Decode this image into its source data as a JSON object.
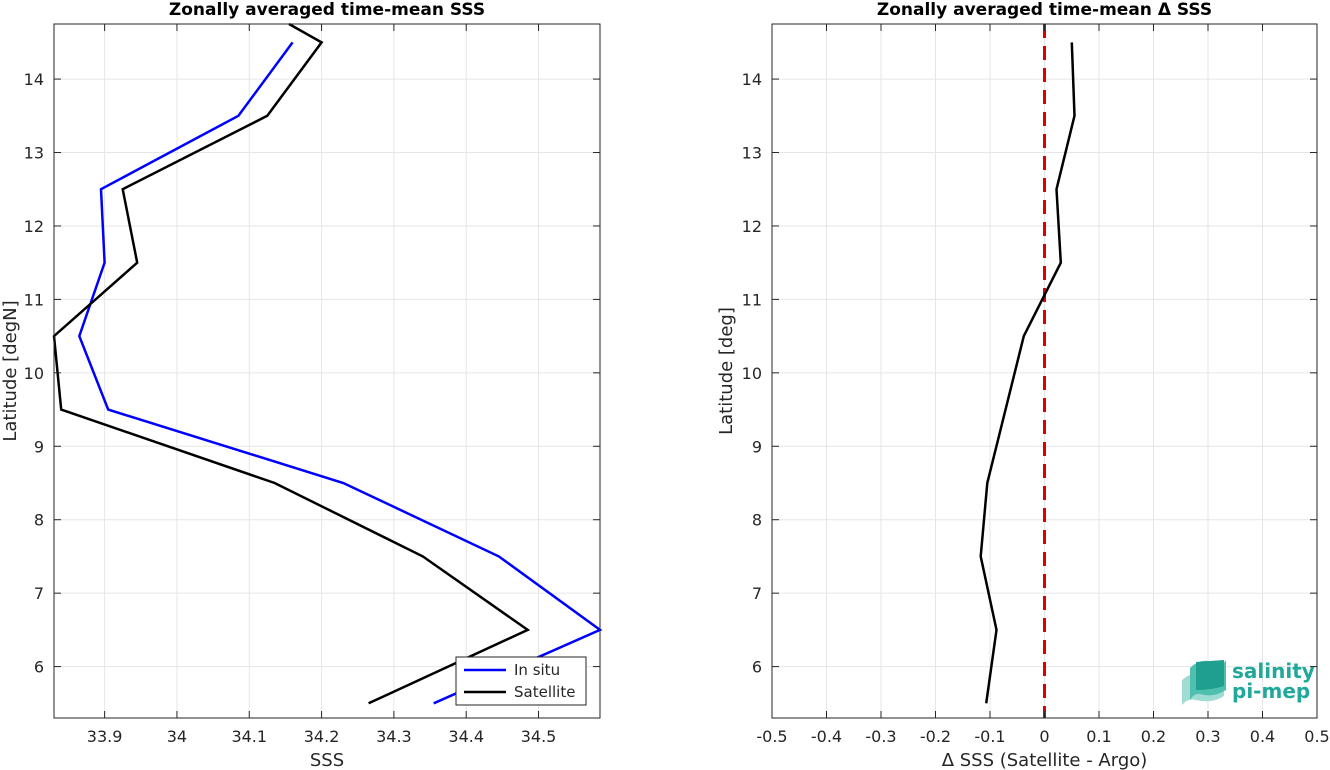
{
  "chart_data": [
    {
      "type": "line",
      "title": "Zonally averaged time-mean SSS",
      "xlabel": "SSS",
      "ylabel": "Latitude [degN]",
      "xlim": [
        33.83,
        34.585
      ],
      "ylim": [
        5.3,
        14.75
      ],
      "xticks": [
        33.9,
        34,
        34.1,
        34.2,
        34.3,
        34.4,
        34.5
      ],
      "xtick_labels": [
        "33.9",
        "34",
        "34.1",
        "34.2",
        "34.3",
        "34.4",
        "34.5"
      ],
      "yticks": [
        6,
        7,
        8,
        9,
        10,
        11,
        12,
        13,
        14
      ],
      "ytick_labels": [
        "6",
        "7",
        "8",
        "9",
        "10",
        "11",
        "12",
        "13",
        "14"
      ],
      "grid": true,
      "legend_position": "bottom-right",
      "series": [
        {
          "name": "In situ",
          "color": "#0000ff",
          "x": [
            34.355,
            34.585,
            34.445,
            34.23,
            33.905,
            33.865,
            33.9,
            33.895,
            34.085,
            34.16
          ],
          "y": [
            5.5,
            6.5,
            7.5,
            8.5,
            9.5,
            10.5,
            11.5,
            12.5,
            13.5,
            14.5
          ]
        },
        {
          "name": "Satellite",
          "color": "#000000",
          "x": [
            34.265,
            34.485,
            34.34,
            34.135,
            33.84,
            33.83,
            33.945,
            33.925,
            34.125,
            34.2,
            34.155
          ],
          "y": [
            5.5,
            6.5,
            7.5,
            8.5,
            9.5,
            10.5,
            11.5,
            12.5,
            13.5,
            14.5,
            14.75
          ]
        }
      ]
    },
    {
      "type": "line",
      "title": "Zonally averaged time-mean Δ SSS",
      "xlabel": "Δ SSS (Satellite - Argo)",
      "ylabel": "Latitude [deg]",
      "xlim": [
        -0.5,
        0.5
      ],
      "ylim": [
        5.3,
        14.75
      ],
      "xticks": [
        -0.5,
        -0.4,
        -0.3,
        -0.2,
        -0.1,
        0,
        0.1,
        0.2,
        0.3,
        0.4,
        0.5
      ],
      "xtick_labels": [
        "-0.5",
        "-0.4",
        "-0.3",
        "-0.2",
        "-0.1",
        "0",
        "0.1",
        "0.2",
        "0.3",
        "0.4",
        "0.5"
      ],
      "yticks": [
        6,
        7,
        8,
        9,
        10,
        11,
        12,
        13,
        14
      ],
      "ytick_labels": [
        "6",
        "7",
        "8",
        "9",
        "10",
        "11",
        "12",
        "13",
        "14"
      ],
      "grid": true,
      "reference_line": {
        "x": 0,
        "color": "#e00000",
        "style": "dashed"
      },
      "series": [
        {
          "color": "#000000",
          "x": [
            -0.107,
            -0.088,
            -0.117,
            -0.105,
            -0.038,
            0.03,
            0.022,
            0.055,
            0.05
          ],
          "y": [
            5.5,
            6.5,
            7.5,
            8.5,
            10.5,
            11.5,
            12.5,
            13.5,
            14.5
          ]
        }
      ]
    }
  ],
  "logo": {
    "line1": "salinity",
    "line2": "pi-mep",
    "color": "#20a89a"
  }
}
